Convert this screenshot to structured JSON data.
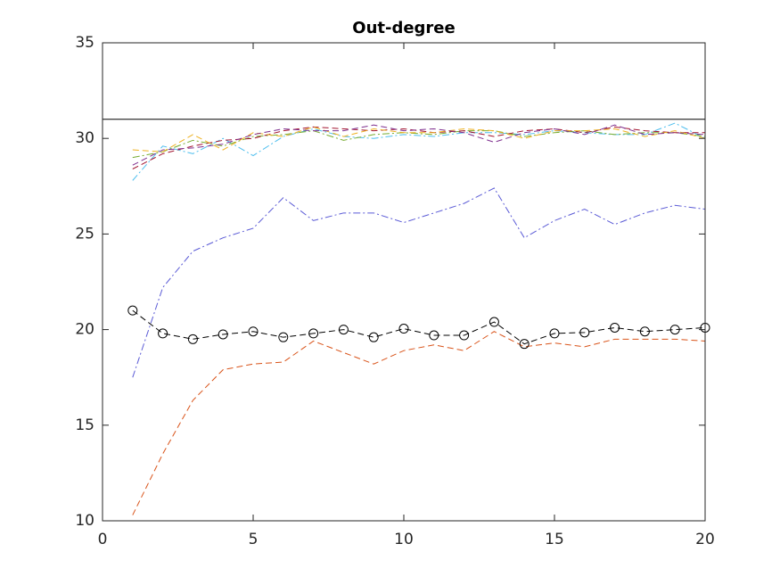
{
  "chart_data": {
    "type": "line",
    "title": "Out-degree",
    "x": [
      1,
      2,
      3,
      4,
      5,
      6,
      7,
      8,
      9,
      10,
      11,
      12,
      13,
      14,
      15,
      16,
      17,
      18,
      19,
      20
    ],
    "xlim": [
      0,
      20
    ],
    "xticks": [
      0,
      5,
      10,
      15,
      20
    ],
    "ylim": [
      10,
      35
    ],
    "yticks": [
      10,
      15,
      20,
      25,
      30,
      35
    ],
    "hline": 31,
    "hline_color": "#000000",
    "series": [
      {
        "color": "#4dbeee",
        "linestyle": "-.",
        "values": [
          27.8,
          29.6,
          29.2,
          30.0,
          29.1,
          30.1,
          30.5,
          30.1,
          30.0,
          30.2,
          30.1,
          30.3,
          30.3,
          30.2,
          30.4,
          30.3,
          30.2,
          30.2,
          30.8,
          30.0
        ]
      },
      {
        "color": "#77ac30",
        "linestyle": "-.",
        "values": [
          29.0,
          29.3,
          29.9,
          29.6,
          30.1,
          30.2,
          30.4,
          29.9,
          30.2,
          30.3,
          30.2,
          30.4,
          30.4,
          30.1,
          30.3,
          30.4,
          30.2,
          30.3,
          30.3,
          30.1
        ]
      },
      {
        "color": "#a2142f",
        "linestyle": "--",
        "values": [
          28.4,
          29.2,
          29.6,
          29.9,
          30.0,
          30.4,
          30.6,
          30.5,
          30.4,
          30.5,
          30.3,
          30.4,
          30.1,
          30.4,
          30.5,
          30.3,
          30.6,
          30.4,
          30.3,
          30.3
        ]
      },
      {
        "color": "#edb120",
        "linestyle": "--",
        "values": [
          29.4,
          29.3,
          30.2,
          29.4,
          30.3,
          30.1,
          30.6,
          30.1,
          30.5,
          30.3,
          30.3,
          30.5,
          30.4,
          30.0,
          30.4,
          30.4,
          30.5,
          30.1,
          30.4,
          30.0
        ]
      },
      {
        "color": "#7e2f8e",
        "linestyle": "--",
        "values": [
          28.6,
          29.4,
          29.5,
          29.7,
          30.2,
          30.5,
          30.4,
          30.4,
          30.7,
          30.4,
          30.5,
          30.3,
          29.8,
          30.3,
          30.5,
          30.2,
          30.7,
          30.2,
          30.3,
          30.2
        ]
      },
      {
        "color": "#5b5bd6",
        "linestyle": "-.",
        "values": [
          17.5,
          22.2,
          24.1,
          24.8,
          25.3,
          26.9,
          25.7,
          26.1,
          26.1,
          25.6,
          26.1,
          26.6,
          27.4,
          24.8,
          25.7,
          26.3,
          25.5,
          26.1,
          26.5,
          26.3
        ]
      },
      {
        "color": "#d95319",
        "linestyle": "--",
        "values": [
          10.3,
          13.5,
          16.3,
          17.9,
          18.2,
          18.3,
          19.4,
          18.8,
          18.2,
          18.9,
          19.2,
          18.9,
          19.9,
          19.1,
          19.3,
          19.1,
          19.5,
          19.5,
          19.5,
          19.4
        ]
      },
      {
        "color": "#000000",
        "linestyle": "--",
        "marker": "o",
        "values": [
          21.0,
          19.8,
          19.5,
          19.75,
          19.9,
          19.6,
          19.8,
          20.0,
          19.6,
          20.05,
          19.7,
          19.7,
          20.4,
          19.25,
          19.8,
          19.85,
          20.1,
          19.9,
          20.0,
          20.1
        ]
      }
    ]
  }
}
